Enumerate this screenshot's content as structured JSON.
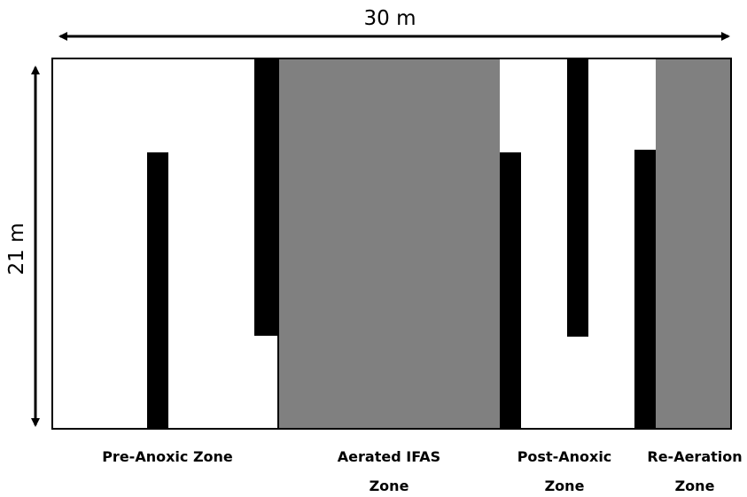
{
  "dimensions": {
    "width_label": "30 m",
    "height_label": "21 m"
  },
  "colors": {
    "aerated_fill": "#808080",
    "baffle": "#000000",
    "outline": "#000000",
    "background": "#ffffff"
  },
  "zones": [
    {
      "id": "pre-anoxic",
      "line1": "Pre-Anoxic Zone",
      "line2": ""
    },
    {
      "id": "aerated-ifas",
      "line1": "Aerated IFAS",
      "line2": "Zone"
    },
    {
      "id": "post-anoxic",
      "line1": "Post-Anoxic",
      "line2": "Zone"
    },
    {
      "id": "re-aeration",
      "line1": "Re-Aeration",
      "line2": "Zone"
    }
  ]
}
